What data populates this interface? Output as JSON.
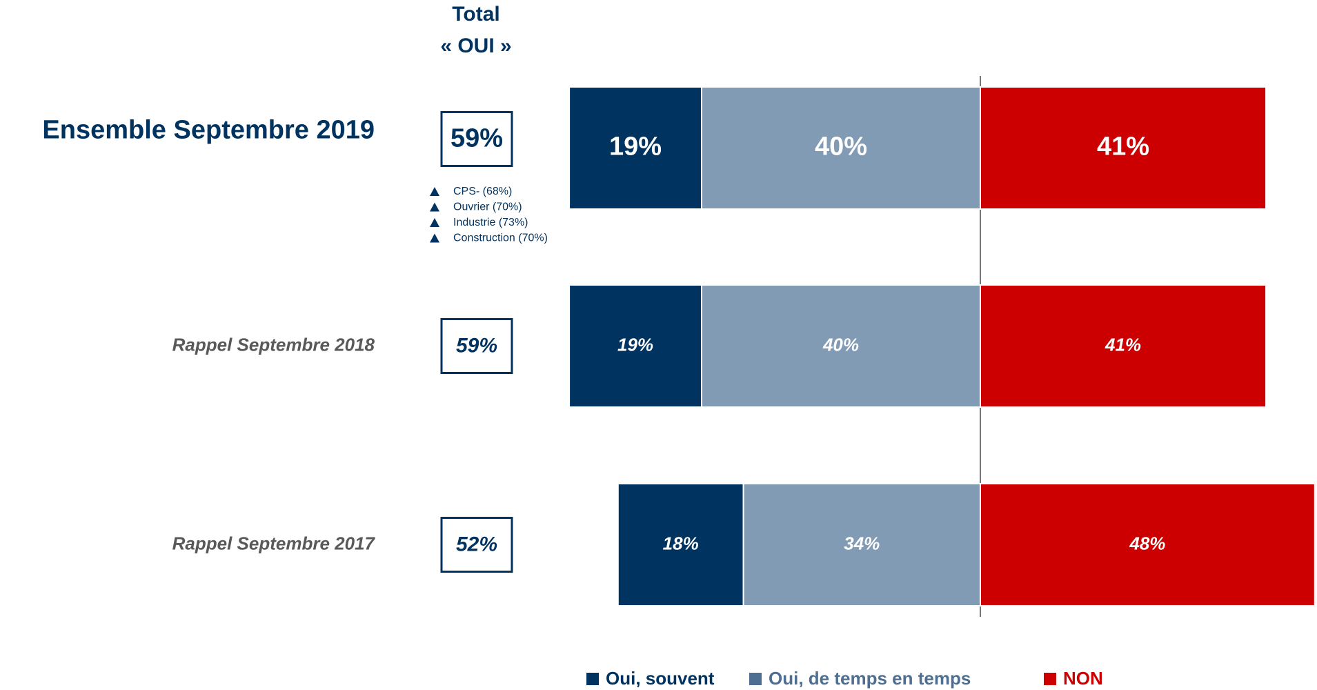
{
  "chart_data": {
    "type": "bar",
    "header": [
      "Total",
      "« OUI »"
    ],
    "categories": [
      "Ensemble Septembre 2019",
      "Rappel Septembre 2018",
      "Rappel Septembre 2017"
    ],
    "totals": [
      59,
      59,
      52
    ],
    "total_labels": [
      "59%",
      "59%",
      "52%"
    ],
    "series": [
      {
        "name": "Oui, souvent",
        "color": "#00335f",
        "values": [
          19,
          19,
          18
        ],
        "value_labels": [
          "19%",
          "19%",
          "18%"
        ]
      },
      {
        "name": "Oui, de temps en temps",
        "color": "#829bb4",
        "values": [
          40,
          40,
          34
        ],
        "value_labels": [
          "40%",
          "40%",
          "34%"
        ]
      },
      {
        "name": "NON",
        "color": "#cc0000",
        "values": [
          41,
          41,
          48
        ],
        "value_labels": [
          "41%",
          "41%",
          "48%"
        ]
      }
    ],
    "annotations": [
      "CPS- (68%)",
      "Ouvrier (70%)",
      "Industrie (73%)",
      "Construction (70%)"
    ]
  }
}
